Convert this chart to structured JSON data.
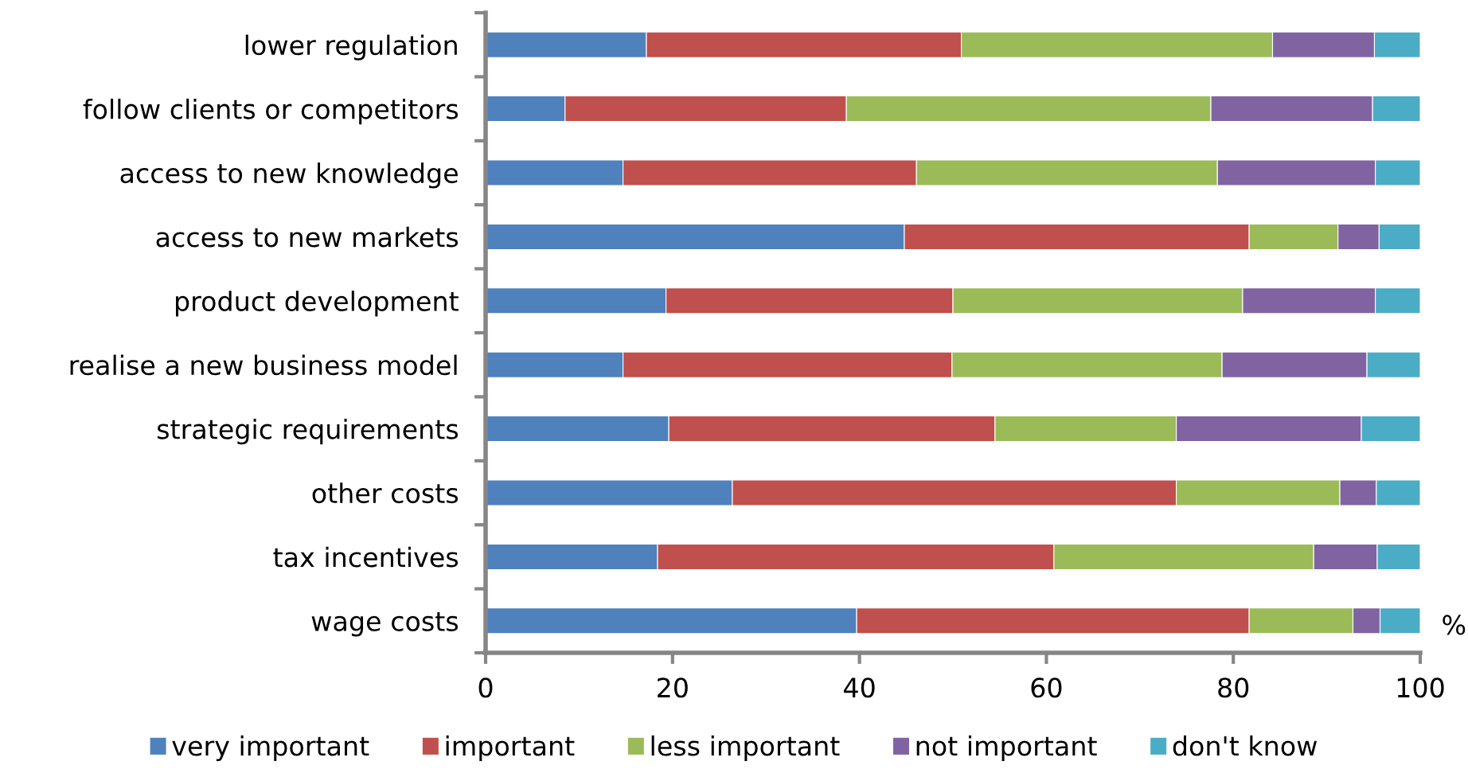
{
  "chart_data": {
    "type": "bar",
    "orientation": "horizontal",
    "stacked": true,
    "xlabel": "%",
    "categories": [
      "lower regulation",
      "follow clients or competitors",
      "access to new knowledge",
      "access to new markets",
      "product development",
      "realise a new business model",
      "strategic requirements",
      "other costs",
      "tax incentives",
      "wage costs"
    ],
    "series": [
      {
        "name": "very important",
        "color": "#4f81bd",
        "values": [
          17.2,
          8.5,
          14.7,
          44.8,
          19.3,
          14.7,
          19.6,
          26.4,
          18.4,
          39.7
        ]
      },
      {
        "name": "important",
        "color": "#c0504d",
        "values": [
          33.7,
          30.1,
          31.4,
          36.9,
          30.7,
          35.2,
          34.9,
          47.5,
          42.4,
          42.0
        ]
      },
      {
        "name": "less important",
        "color": "#9bbb59",
        "values": [
          33.3,
          39.0,
          32.2,
          9.5,
          31.0,
          28.9,
          19.4,
          17.5,
          27.8,
          11.1
        ]
      },
      {
        "name": "not important",
        "color": "#8064a2",
        "values": [
          10.9,
          17.3,
          16.9,
          4.4,
          14.2,
          15.5,
          19.8,
          3.9,
          6.8,
          2.9
        ]
      },
      {
        "name": "don't know",
        "color": "#4bacc6",
        "values": [
          4.9,
          5.1,
          4.8,
          4.4,
          4.8,
          5.7,
          6.3,
          4.7,
          4.6,
          4.3
        ]
      }
    ],
    "xlim": [
      0,
      100
    ],
    "xticks": [
      0,
      20,
      40,
      60,
      80,
      100
    ],
    "legend": "bottom"
  }
}
